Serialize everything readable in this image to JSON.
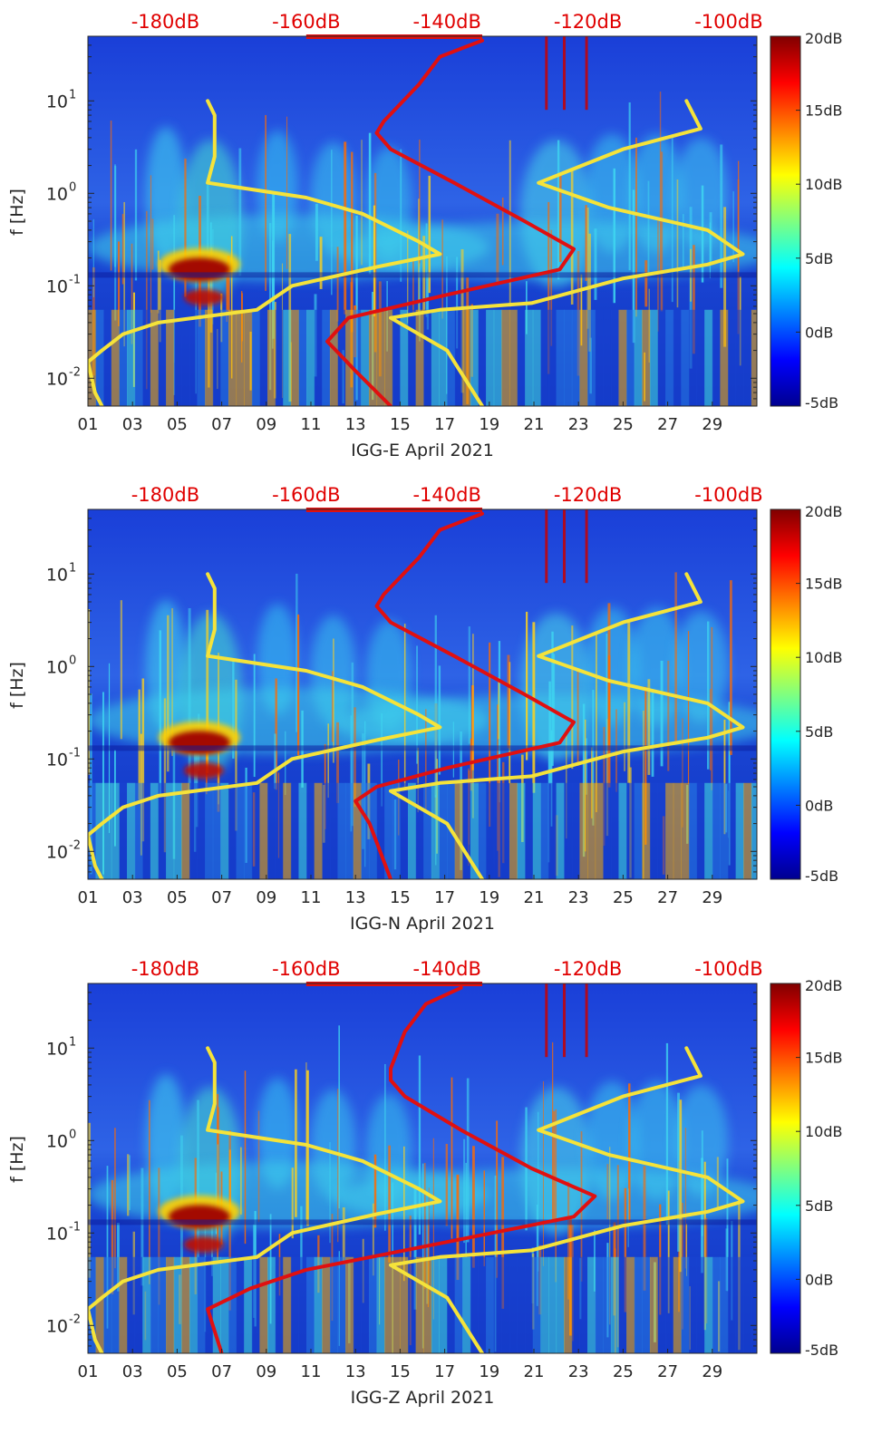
{
  "shared": {
    "x_ticks": [
      "01",
      "03",
      "05",
      "07",
      "09",
      "11",
      "13",
      "15",
      "17",
      "19",
      "21",
      "23",
      "25",
      "27",
      "29"
    ],
    "x_tick_days": [
      1,
      3,
      5,
      7,
      9,
      11,
      13,
      15,
      17,
      19,
      21,
      23,
      25,
      27,
      29
    ],
    "x_range": [
      1,
      31
    ],
    "ylabel": "f [Hz]",
    "ylim": [
      0.005,
      50
    ],
    "yscale": "log",
    "y_ticks": [
      {
        "value": 10,
        "base": "10",
        "exp": "1"
      },
      {
        "value": 1,
        "base": "10",
        "exp": "0"
      },
      {
        "value": 0.1,
        "base": "10",
        "exp": "-1"
      },
      {
        "value": 0.01,
        "base": "10",
        "exp": "-2"
      }
    ],
    "top_axis_ticks": [
      "-180dB",
      "-160dB",
      "-140dB",
      "-120dB",
      "-100dB"
    ],
    "top_axis_values": [
      -180,
      -160,
      -140,
      -120,
      -100
    ],
    "top_axis_range": [
      -191,
      -96
    ],
    "colorbar_ticks": [
      "20dB",
      "15dB",
      "10dB",
      "5dB",
      "0dB",
      "-5dB"
    ],
    "colorbar_values": [
      20,
      15,
      10,
      5,
      0,
      -5
    ],
    "colorbar_range": [
      -5,
      20
    ],
    "colormap": "jet",
    "colors": {
      "top_axis": "#e00000",
      "noise_model_low": "#f5e33a",
      "noise_model_high": "#f5e33a",
      "station_psd": "#e01010"
    }
  },
  "chart_data": [
    {
      "type": "heatmap",
      "xlabel": "IGG-E April 2021",
      "ylabel": "f [Hz]",
      "series": [
        {
          "points": [
            [
              -174,
              10
            ],
            [
              -173,
              7
            ],
            [
              -173,
              2.5
            ],
            [
              -174,
              1.3
            ],
            [
              -160,
              0.9
            ],
            [
              -152,
              0.6
            ],
            [
              -144,
              0.3
            ],
            [
              -141,
              0.22
            ],
            [
              -150,
              0.16
            ],
            [
              -162,
              0.1
            ],
            [
              -165,
              0.07
            ],
            [
              -167,
              0.055
            ],
            [
              -181,
              0.04
            ],
            [
              -186,
              0.03
            ],
            [
              -189,
              0.02
            ],
            [
              -191,
              0.015
            ],
            [
              -190,
              0.007
            ],
            [
              -189,
              0.005
            ]
          ]
        },
        {
          "points": [
            [
              -106,
              10
            ],
            [
              -104,
              5
            ],
            [
              -115,
              3
            ],
            [
              -127,
              1.3
            ],
            [
              -117,
              0.7
            ],
            [
              -103,
              0.4
            ],
            [
              -98,
              0.22
            ],
            [
              -103,
              0.17
            ],
            [
              -115,
              0.12
            ],
            [
              -128,
              0.065
            ],
            [
              -141,
              0.055
            ],
            [
              -148,
              0.045
            ],
            [
              -140,
              0.02
            ],
            [
              -135,
              0.005
            ]
          ]
        },
        {
          "points": [
            [
              -135,
              45
            ],
            [
              -141,
              30
            ],
            [
              -144,
              15
            ],
            [
              -149,
              6
            ],
            [
              -150,
              4.5
            ],
            [
              -148,
              3
            ],
            [
              -139,
              1.3
            ],
            [
              -129,
              0.5
            ],
            [
              -122,
              0.25
            ],
            [
              -124,
              0.15
            ],
            [
              -140,
              0.08
            ],
            [
              -154,
              0.045
            ],
            [
              -157,
              0.025
            ],
            [
              -153,
              0.012
            ],
            [
              -148,
              0.005
            ]
          ]
        }
      ]
    },
    {
      "type": "heatmap",
      "xlabel": "IGG-N April 2021",
      "ylabel": "f [Hz]",
      "series": [
        {
          "points": [
            [
              -174,
              10
            ],
            [
              -173,
              7
            ],
            [
              -173,
              2.5
            ],
            [
              -174,
              1.3
            ],
            [
              -160,
              0.9
            ],
            [
              -152,
              0.6
            ],
            [
              -144,
              0.3
            ],
            [
              -141,
              0.22
            ],
            [
              -150,
              0.16
            ],
            [
              -162,
              0.1
            ],
            [
              -165,
              0.07
            ],
            [
              -167,
              0.055
            ],
            [
              -181,
              0.04
            ],
            [
              -186,
              0.03
            ],
            [
              -189,
              0.02
            ],
            [
              -191,
              0.015
            ],
            [
              -190,
              0.007
            ],
            [
              -189,
              0.005
            ]
          ]
        },
        {
          "points": [
            [
              -106,
              10
            ],
            [
              -104,
              5
            ],
            [
              -115,
              3
            ],
            [
              -127,
              1.3
            ],
            [
              -117,
              0.7
            ],
            [
              -103,
              0.4
            ],
            [
              -98,
              0.22
            ],
            [
              -103,
              0.17
            ],
            [
              -115,
              0.12
            ],
            [
              -128,
              0.065
            ],
            [
              -141,
              0.055
            ],
            [
              -148,
              0.045
            ],
            [
              -140,
              0.02
            ],
            [
              -135,
              0.005
            ]
          ]
        },
        {
          "points": [
            [
              -135,
              45
            ],
            [
              -141,
              30
            ],
            [
              -144,
              15
            ],
            [
              -149,
              6
            ],
            [
              -150,
              4.5
            ],
            [
              -148,
              3
            ],
            [
              -139,
              1.3
            ],
            [
              -129,
              0.5
            ],
            [
              -122,
              0.25
            ],
            [
              -124,
              0.15
            ],
            [
              -140,
              0.08
            ],
            [
              -150,
              0.05
            ],
            [
              -153,
              0.035
            ],
            [
              -151,
              0.02
            ],
            [
              -148,
              0.005
            ]
          ]
        }
      ]
    },
    {
      "type": "heatmap",
      "xlabel": "IGG-Z April 2021",
      "ylabel": "f [Hz]",
      "series": [
        {
          "points": [
            [
              -174,
              10
            ],
            [
              -173,
              7
            ],
            [
              -173,
              2.5
            ],
            [
              -174,
              1.3
            ],
            [
              -160,
              0.9
            ],
            [
              -152,
              0.6
            ],
            [
              -144,
              0.3
            ],
            [
              -141,
              0.22
            ],
            [
              -150,
              0.16
            ],
            [
              -162,
              0.1
            ],
            [
              -165,
              0.07
            ],
            [
              -167,
              0.055
            ],
            [
              -181,
              0.04
            ],
            [
              -186,
              0.03
            ],
            [
              -189,
              0.02
            ],
            [
              -191,
              0.015
            ],
            [
              -190,
              0.007
            ],
            [
              -189,
              0.005
            ]
          ]
        },
        {
          "points": [
            [
              -106,
              10
            ],
            [
              -104,
              5
            ],
            [
              -115,
              3
            ],
            [
              -127,
              1.3
            ],
            [
              -117,
              0.7
            ],
            [
              -103,
              0.4
            ],
            [
              -98,
              0.22
            ],
            [
              -103,
              0.17
            ],
            [
              -115,
              0.12
            ],
            [
              -128,
              0.065
            ],
            [
              -141,
              0.055
            ],
            [
              -148,
              0.045
            ],
            [
              -140,
              0.02
            ],
            [
              -135,
              0.005
            ]
          ]
        },
        {
          "points": [
            [
              -138,
              45
            ],
            [
              -143,
              30
            ],
            [
              -146,
              15
            ],
            [
              -148,
              6
            ],
            [
              -148,
              4.5
            ],
            [
              -146,
              3
            ],
            [
              -138,
              1.3
            ],
            [
              -128,
              0.5
            ],
            [
              -119,
              0.25
            ],
            [
              -122,
              0.15
            ],
            [
              -140,
              0.08
            ],
            [
              -160,
              0.04
            ],
            [
              -168,
              0.025
            ],
            [
              -174,
              0.015
            ],
            [
              -172,
              0.005
            ]
          ]
        }
      ]
    }
  ]
}
